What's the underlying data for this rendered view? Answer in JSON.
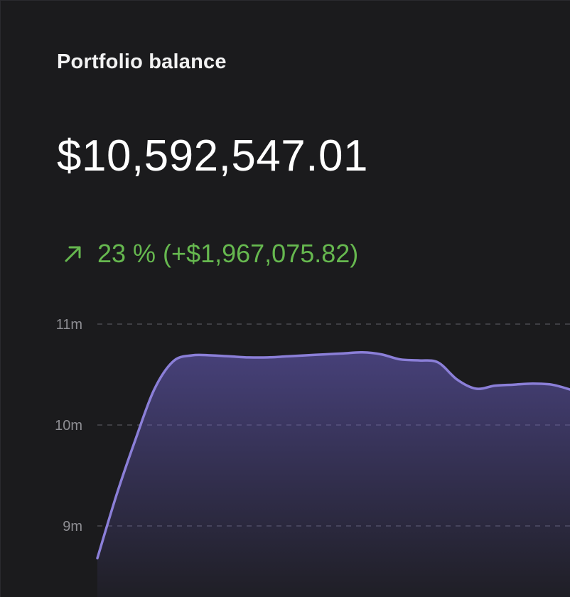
{
  "card": {
    "title": "Portfolio balance",
    "balance": "$10,592,547.01",
    "change_text": "23 % (+$1,967,075.82)",
    "change_icon": "arrow-up-right-icon",
    "colors": {
      "background": "#1b1b1d",
      "positive": "#66b84f",
      "line": "#8b7fd8",
      "text": "#ffffff"
    }
  },
  "chart_data": {
    "type": "area",
    "title": "",
    "xlabel": "",
    "ylabel": "",
    "ylim": [
      8.6,
      11.0
    ],
    "yticks": [
      {
        "value": 11,
        "label": "11m"
      },
      {
        "value": 10,
        "label": "10m"
      },
      {
        "value": 9,
        "label": "9m"
      }
    ],
    "grid": true,
    "series": [
      {
        "values": [
          8.68,
          9.3,
          9.85,
          10.35,
          10.63,
          10.69,
          10.69,
          10.68,
          10.67,
          10.67,
          10.68,
          10.69,
          10.7,
          10.71,
          10.72,
          10.7,
          10.65,
          10.64,
          10.62,
          10.45,
          10.36,
          10.39,
          10.4,
          10.41,
          10.4,
          10.35
        ]
      }
    ]
  }
}
